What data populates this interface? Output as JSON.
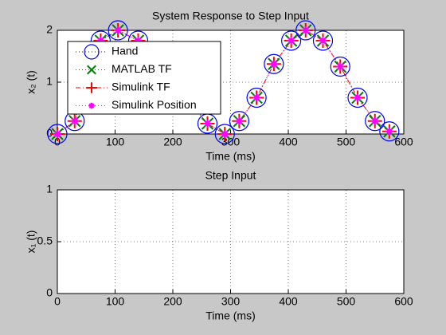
{
  "chart_data": [
    {
      "type": "line",
      "title": "System Response to Step Input",
      "xlabel": "Time (ms)",
      "ylabel": "x₂ (t)",
      "x": [
        0,
        30,
        75,
        105,
        140,
        260,
        290,
        315,
        345,
        375,
        405,
        430,
        460,
        490,
        520,
        550,
        575
      ],
      "series": [
        {
          "name": "Hand",
          "color": "#0000ff",
          "marker": "o",
          "line": "dotted",
          "values": [
            0,
            0.25,
            1.8,
            2.0,
            1.8,
            0.2,
            0,
            0.25,
            0.7,
            1.35,
            1.8,
            2.0,
            1.8,
            1.3,
            0.7,
            0.25,
            0.05
          ]
        },
        {
          "name": "MATLAB TF",
          "color": "#008000",
          "marker": "x",
          "line": "dotted",
          "values": [
            0,
            0.25,
            1.8,
            2.0,
            1.8,
            0.2,
            0,
            0.25,
            0.7,
            1.35,
            1.8,
            2.0,
            1.8,
            1.3,
            0.7,
            0.25,
            0.05
          ]
        },
        {
          "name": "Simulink TF",
          "color": "#ff0000",
          "marker": "+",
          "line": "dashdot",
          "values": [
            0,
            0.25,
            1.8,
            2.0,
            1.8,
            0.2,
            0,
            0.25,
            0.7,
            1.35,
            1.8,
            2.0,
            1.8,
            1.3,
            0.7,
            0.25,
            0.05
          ]
        },
        {
          "name": "Simulink Position",
          "color": "#ff00ff",
          "marker": "*",
          "line": "dotted",
          "values": [
            0,
            0.25,
            1.8,
            2.0,
            1.8,
            0.2,
            0,
            0.25,
            0.7,
            1.35,
            1.8,
            2.0,
            1.8,
            1.3,
            0.7,
            0.25,
            0.05
          ]
        }
      ],
      "xlim": [
        0,
        600
      ],
      "xticks": [
        0,
        100,
        200,
        300,
        400,
        500,
        600
      ],
      "ylim": [
        0,
        2
      ],
      "yticks": [
        0,
        1,
        2
      ],
      "grid": true,
      "legend": "upper left"
    },
    {
      "type": "line",
      "title": "Step Input",
      "xlabel": "Time (ms)",
      "ylabel": "x₁ (t)",
      "x": [],
      "series": [],
      "xlim": [
        0,
        600
      ],
      "xticks": [
        0,
        100,
        200,
        300,
        400,
        500,
        600
      ],
      "ylim": [
        0,
        1
      ],
      "yticks": [
        0,
        0.5,
        1
      ],
      "grid": true
    }
  ]
}
